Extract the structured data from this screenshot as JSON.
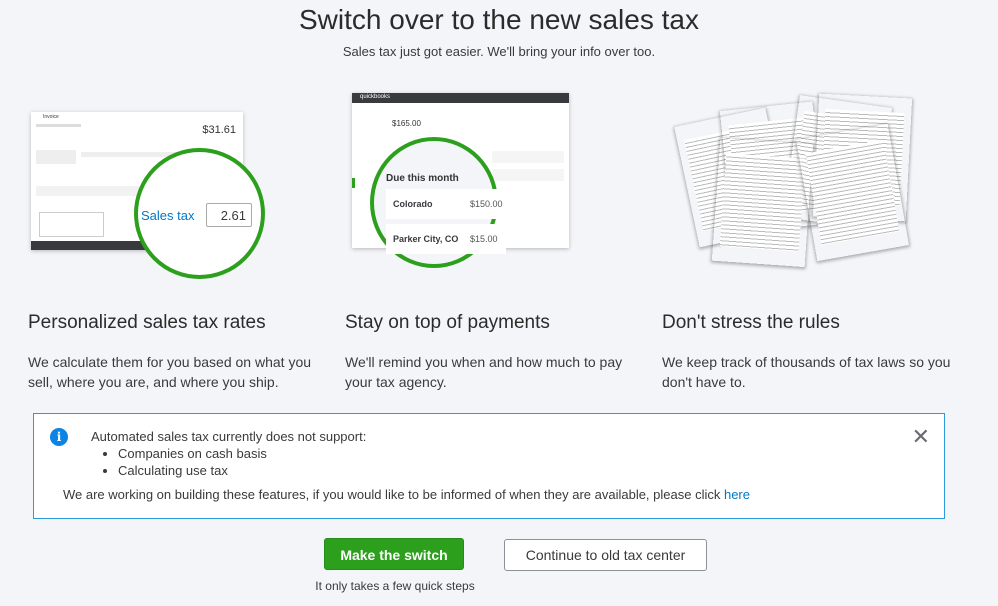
{
  "header": {
    "title": "Switch over to the new sales tax",
    "subtitle": "Sales tax just got easier. We'll bring your info over too."
  },
  "illustrations": {
    "invoice": {
      "title": "Invoice",
      "balance": "$31.61",
      "sales_tax_label": "Sales tax",
      "sales_tax_value": "2.61"
    },
    "payments": {
      "brand": "quickbooks",
      "amount": "$165.00",
      "due_heading": "Due this month",
      "rows": [
        {
          "label": "Colorado",
          "amount": "$150.00"
        },
        {
          "label": "Parker City, CO",
          "amount": "$15.00"
        }
      ]
    },
    "rules": {
      "icon": "documents-stack"
    }
  },
  "features": [
    {
      "title": "Personalized sales tax rates",
      "desc": "We calculate them for you based on what you sell, where you are, and where you ship."
    },
    {
      "title": "Stay on top of payments",
      "desc": "We'll remind you when and how much to pay your tax agency."
    },
    {
      "title": "Don't stress the rules",
      "desc": "We keep track of thousands of tax laws so you don't have to."
    }
  ],
  "notice": {
    "icon": "info-icon",
    "heading": "Automated sales tax currently does not support:",
    "items": [
      "Companies on cash basis",
      "Calculating use tax"
    ],
    "body": "We are working on building these features, if you would like to be informed of when they are available, please click ",
    "link": "here",
    "close": "✕"
  },
  "actions": {
    "primary": "Make the switch",
    "secondary": "Continue to old tax center",
    "note": "It only takes a few quick steps"
  },
  "colors": {
    "accent_green": "#2ca01c",
    "info_blue": "#0d84e3",
    "link_blue": "#0077c5"
  }
}
